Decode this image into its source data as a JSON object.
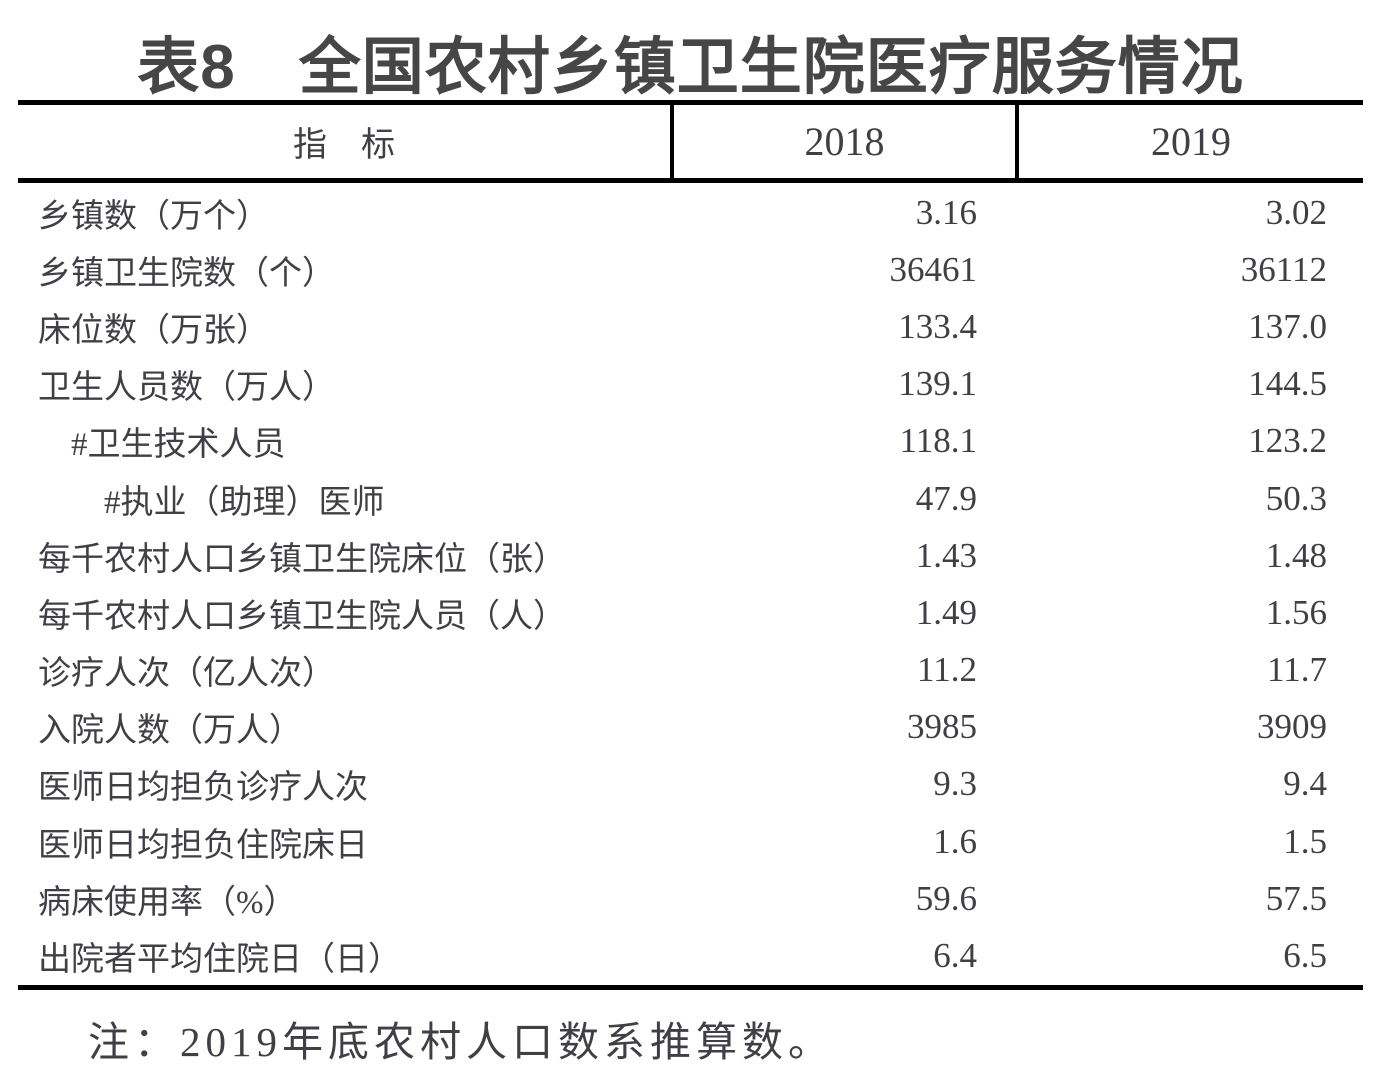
{
  "title": "表8　全国农村乡镇卫生院医疗服务情况",
  "colors": {
    "text": "#3f3f46",
    "title_text": "#464646",
    "border": "#000000",
    "background": "#ffffff"
  },
  "table": {
    "header": {
      "indicator": "指　标",
      "year1": "2018",
      "year2": "2019"
    },
    "rows": [
      {
        "label": "乡镇数（万个）",
        "v2018": "3.16",
        "v2019": "3.02"
      },
      {
        "label": "乡镇卫生院数（个）",
        "v2018": "36461",
        "v2019": "36112"
      },
      {
        "label": "床位数（万张）",
        "v2018": "133.4",
        "v2019": "137.0"
      },
      {
        "label": "卫生人员数（万人）",
        "v2018": "139.1",
        "v2019": "144.5"
      },
      {
        "label": "　#卫生技术人员",
        "v2018": "118.1",
        "v2019": "123.2"
      },
      {
        "label": "　　#执业（助理）医师",
        "v2018": "47.9",
        "v2019": "50.3"
      },
      {
        "label": "每千农村人口乡镇卫生院床位（张）",
        "v2018": "1.43",
        "v2019": "1.48"
      },
      {
        "label": "每千农村人口乡镇卫生院人员（人）",
        "v2018": "1.49",
        "v2019": "1.56"
      },
      {
        "label": "诊疗人次（亿人次）",
        "v2018": "11.2",
        "v2019": "11.7"
      },
      {
        "label": "入院人数（万人）",
        "v2018": "3985",
        "v2019": "3909"
      },
      {
        "label": "医师日均担负诊疗人次",
        "v2018": "9.3",
        "v2019": "9.4"
      },
      {
        "label": "医师日均担负住院床日",
        "v2018": "1.6",
        "v2019": "1.5"
      },
      {
        "label": "病床使用率（%）",
        "v2018": "59.6",
        "v2019": "57.5"
      },
      {
        "label": "出院者平均住院日（日）",
        "v2018": "6.4",
        "v2019": "6.5"
      }
    ]
  },
  "note": "注：2019年底农村人口数系推算数。"
}
